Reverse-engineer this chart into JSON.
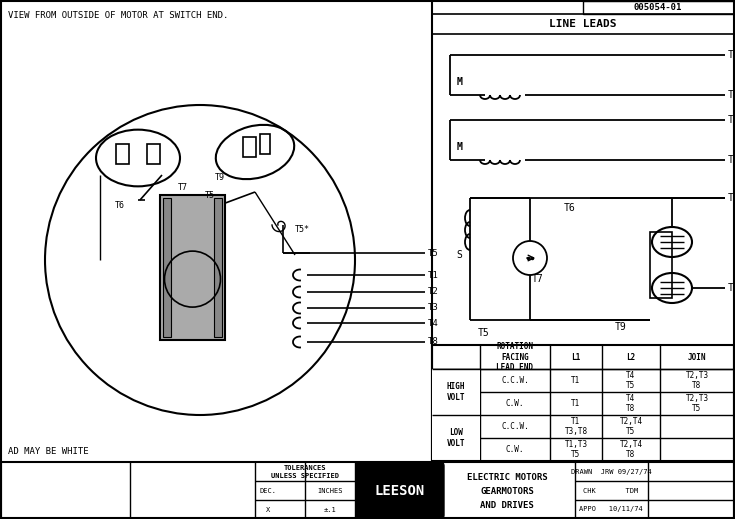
{
  "bg_color": "#ffffff",
  "panel_bg": "#ffffff",
  "line_color": "#000000",
  "title_doc": "005054-01",
  "view_text": "VIEW FROM OUTSIDE OF MOTOR AT SWITCH END.",
  "lead_text": "AD MAY BE WHITE",
  "line_leads_title": "LINE LEADS",
  "table_headers": [
    "ROTATION\nFACING\nLEAD END",
    "L1",
    "L2",
    "JOIN"
  ],
  "footer_leeson": "LEESON",
  "footer_mid": "ELECTRIC MOTORS\nGEARMOTORS\nAND DRIVES",
  "drawn": "DRAWN  JRW 09/27/74",
  "chk": "CHK      TDM",
  "appo": "APPO   10/11/74"
}
